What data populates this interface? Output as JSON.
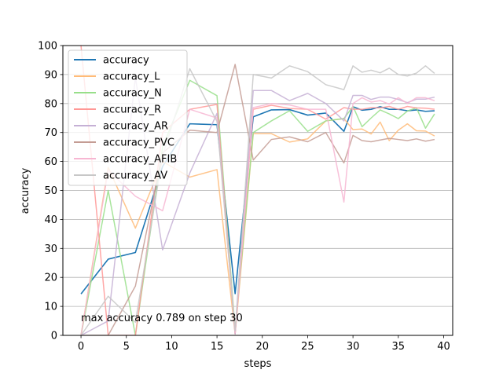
{
  "chart_data": {
    "type": "line",
    "xlabel": "steps",
    "ylabel": "accuracy",
    "xlim": [
      -2,
      41
    ],
    "ylim": [
      0,
      100
    ],
    "xticks": [
      0,
      5,
      10,
      15,
      20,
      25,
      30,
      35,
      40
    ],
    "yticks": [
      0,
      10,
      20,
      30,
      40,
      50,
      60,
      70,
      80,
      90,
      100
    ],
    "grid": "horizontal",
    "legend_position": "top-left",
    "annotation": "max accuracy 0.789 on step 30",
    "x": [
      0,
      3,
      6,
      9,
      12,
      15,
      17,
      19,
      21,
      23,
      25,
      27,
      29,
      30,
      31,
      32,
      33,
      34,
      35,
      36,
      37,
      38,
      39
    ],
    "series": [
      {
        "name": "accuracy",
        "color": "#1f77b4",
        "values": [
          14.3,
          26.3,
          28.6,
          58.3,
          73.0,
          72.7,
          14.4,
          75.4,
          77.8,
          77.9,
          76.0,
          76.7,
          70.4,
          78.9,
          77.7,
          78.0,
          78.9,
          78.0,
          78.0,
          77.5,
          77.8,
          77.3,
          77.5
        ]
      },
      {
        "name": "accuracy_L",
        "color": "#ffbb78",
        "values": [
          0.0,
          58.0,
          37.0,
          60.0,
          54.6,
          57.2,
          0.5,
          69.6,
          69.6,
          66.7,
          67.8,
          74.0,
          74.8,
          71.0,
          71.2,
          69.5,
          73.6,
          67.2,
          70.8,
          73.0,
          70.6,
          70.5,
          68.8
        ]
      },
      {
        "name": "accuracy_N",
        "color": "#98df8a",
        "values": [
          0.0,
          50.0,
          0.0,
          65.0,
          88.0,
          82.7,
          2.0,
          70.0,
          74.0,
          77.5,
          70.4,
          74.0,
          74.8,
          79.0,
          72.0,
          75.0,
          77.8,
          76.4,
          74.8,
          77.4,
          78.5,
          71.5,
          76.4
        ]
      },
      {
        "name": "accuracy_R",
        "color": "#ff9896",
        "values": [
          100.0,
          0.0,
          0.0,
          70.0,
          78.0,
          79.7,
          0.5,
          78.0,
          79.4,
          78.3,
          78.0,
          74.6,
          78.6,
          78.0,
          78.0,
          78.6,
          78.5,
          79.0,
          78.0,
          79.0,
          78.5,
          78.4,
          78.0
        ]
      },
      {
        "name": "accuracy_AR",
        "color": "#c5b0d5",
        "values": [
          0.0,
          5.0,
          89.0,
          29.5,
          56.0,
          76.6,
          0.5,
          84.5,
          84.5,
          81.0,
          83.5,
          80.0,
          74.0,
          82.8,
          82.8,
          81.4,
          82.2,
          82.2,
          81.4,
          80.3,
          81.5,
          81.5,
          82.2
        ]
      },
      {
        "name": "accuracy_PVC",
        "color": "#c49c94",
        "values": [
          0.0,
          0.0,
          17.0,
          63.0,
          70.8,
          70.0,
          93.5,
          60.5,
          67.6,
          68.5,
          66.8,
          70.0,
          59.5,
          69.0,
          67.2,
          66.8,
          67.4,
          68.0,
          67.6,
          67.2,
          67.8,
          67.0,
          67.6
        ]
      },
      {
        "name": "accuracy_AFIB",
        "color": "#f7b6d2",
        "values": [
          0.0,
          57.0,
          48.0,
          43.0,
          78.0,
          75.0,
          1.0,
          78.6,
          80.0,
          79.5,
          78.0,
          78.0,
          46.0,
          80.0,
          82.0,
          80.5,
          81.0,
          79.8,
          82.0,
          80.0,
          82.0,
          82.0,
          81.0
        ]
      },
      {
        "name": "accuracy_AV",
        "color": "#c7c7c7",
        "values": [
          0.0,
          13.5,
          4.5,
          62.0,
          92.0,
          73.8,
          1.5,
          90.0,
          88.8,
          93.0,
          91.0,
          86.5,
          84.8,
          93.0,
          90.8,
          91.5,
          90.6,
          92.2,
          90.0,
          89.5,
          90.5,
          93.0,
          90.4
        ]
      }
    ]
  }
}
